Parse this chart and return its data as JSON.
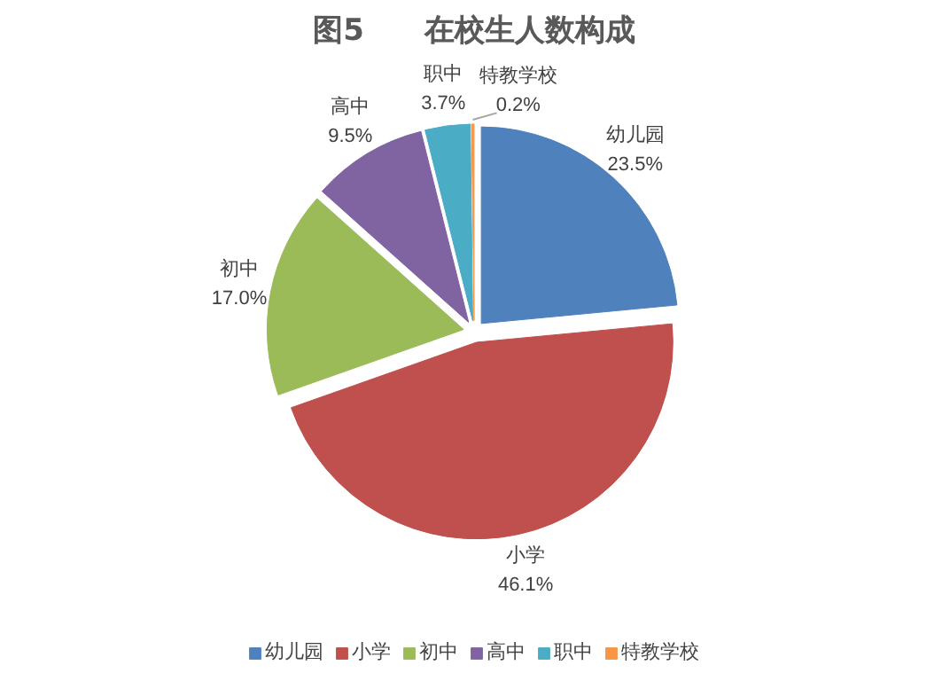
{
  "chart_data": {
    "type": "pie",
    "title": "图5　　在校生人数构成",
    "categories": [
      "幼儿园",
      "小学",
      "初中",
      "高中",
      "职中",
      "特教学校"
    ],
    "values": [
      23.5,
      46.1,
      17.0,
      9.5,
      3.7,
      0.2
    ],
    "value_labels": [
      "23.5%",
      "46.1%",
      "17.0%",
      "9.5%",
      "3.7%",
      "0.2%"
    ],
    "colors": [
      "#4f81bd",
      "#c0504d",
      "#9bbb59",
      "#8064a2",
      "#4bacc6",
      "#f79646"
    ],
    "legend": "bottom"
  }
}
